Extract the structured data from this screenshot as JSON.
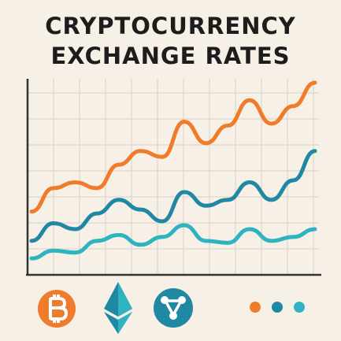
{
  "chart_data": {
    "type": "line",
    "title": "CRYPTOCURRENCY EXCHANGE RATES",
    "categories": [
      null,
      null,
      null,
      null,
      null,
      null,
      null,
      null,
      null,
      null,
      null,
      null,
      null,
      null
    ],
    "series": [
      {
        "color": "#f07b2a",
        "values": [
          32,
          44,
          47,
          44,
          56,
          63,
          60,
          78,
          67,
          76,
          89,
          77,
          86,
          98
        ]
      },
      {
        "color": "#1f88a3",
        "values": [
          17,
          26,
          23,
          31,
          38,
          33,
          27,
          42,
          35,
          38,
          47,
          38,
          48,
          63
        ]
      },
      {
        "color": "#2fb3c1",
        "values": [
          8,
          12,
          11,
          17,
          20,
          15,
          19,
          25,
          17,
          16,
          23,
          17,
          19,
          23
        ]
      }
    ],
    "ylim": [
      0,
      100
    ],
    "grid": true
  }
}
